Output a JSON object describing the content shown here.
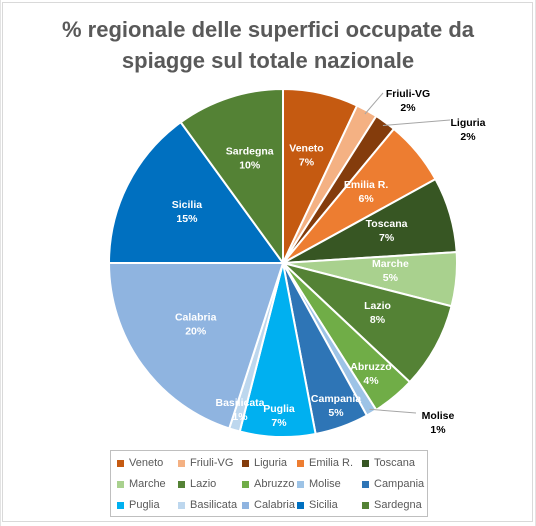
{
  "chart_data": {
    "type": "pie",
    "title": "% regionale delle superfici occupate da spiagge sul totale nazionale",
    "title_lines": [
      "% regionale delle superfici occupate da",
      "spiagge sul totale nazionale"
    ],
    "slices": [
      {
        "label": "Veneto",
        "value": 7,
        "value_label": "7%",
        "color": "#c55a11"
      },
      {
        "label": "Friuli-VG",
        "value": 2,
        "value_label": "2%",
        "color": "#f4b183"
      },
      {
        "label": "Liguria",
        "value": 2,
        "value_label": "2%",
        "color": "#843c0c"
      },
      {
        "label": "Emilia R.",
        "value": 6,
        "value_label": "6%",
        "color": "#ed7d31"
      },
      {
        "label": "Toscana",
        "value": 7,
        "value_label": "7%",
        "color": "#375623"
      },
      {
        "label": "Marche",
        "value": 5,
        "value_label": "5%",
        "color": "#a9d18e"
      },
      {
        "label": "Lazio",
        "value": 8,
        "value_label": "8%",
        "color": "#548235"
      },
      {
        "label": "Abruzzo",
        "value": 4,
        "value_label": "4%",
        "color": "#70ad47"
      },
      {
        "label": "Molise",
        "value": 1,
        "value_label": "1%",
        "color": "#9dc3e6"
      },
      {
        "label": "Campania",
        "value": 5,
        "value_label": "5%",
        "color": "#2e75b6"
      },
      {
        "label": "Puglia",
        "value": 7,
        "value_label": "7%",
        "color": "#00b0f0"
      },
      {
        "label": "Basilicata",
        "value": 1,
        "value_label": "1%",
        "color": "#bdd7ee"
      },
      {
        "label": "Calabria",
        "value": 20,
        "value_label": "20%",
        "color": "#8fb4e0"
      },
      {
        "label": "Sicilia",
        "value": 15,
        "value_label": "15%",
        "color": "#0070c0"
      },
      {
        "label": "Sardegna",
        "value": 10,
        "value_label": "10%",
        "color": "#548235"
      }
    ],
    "legend_position": "bottom"
  }
}
